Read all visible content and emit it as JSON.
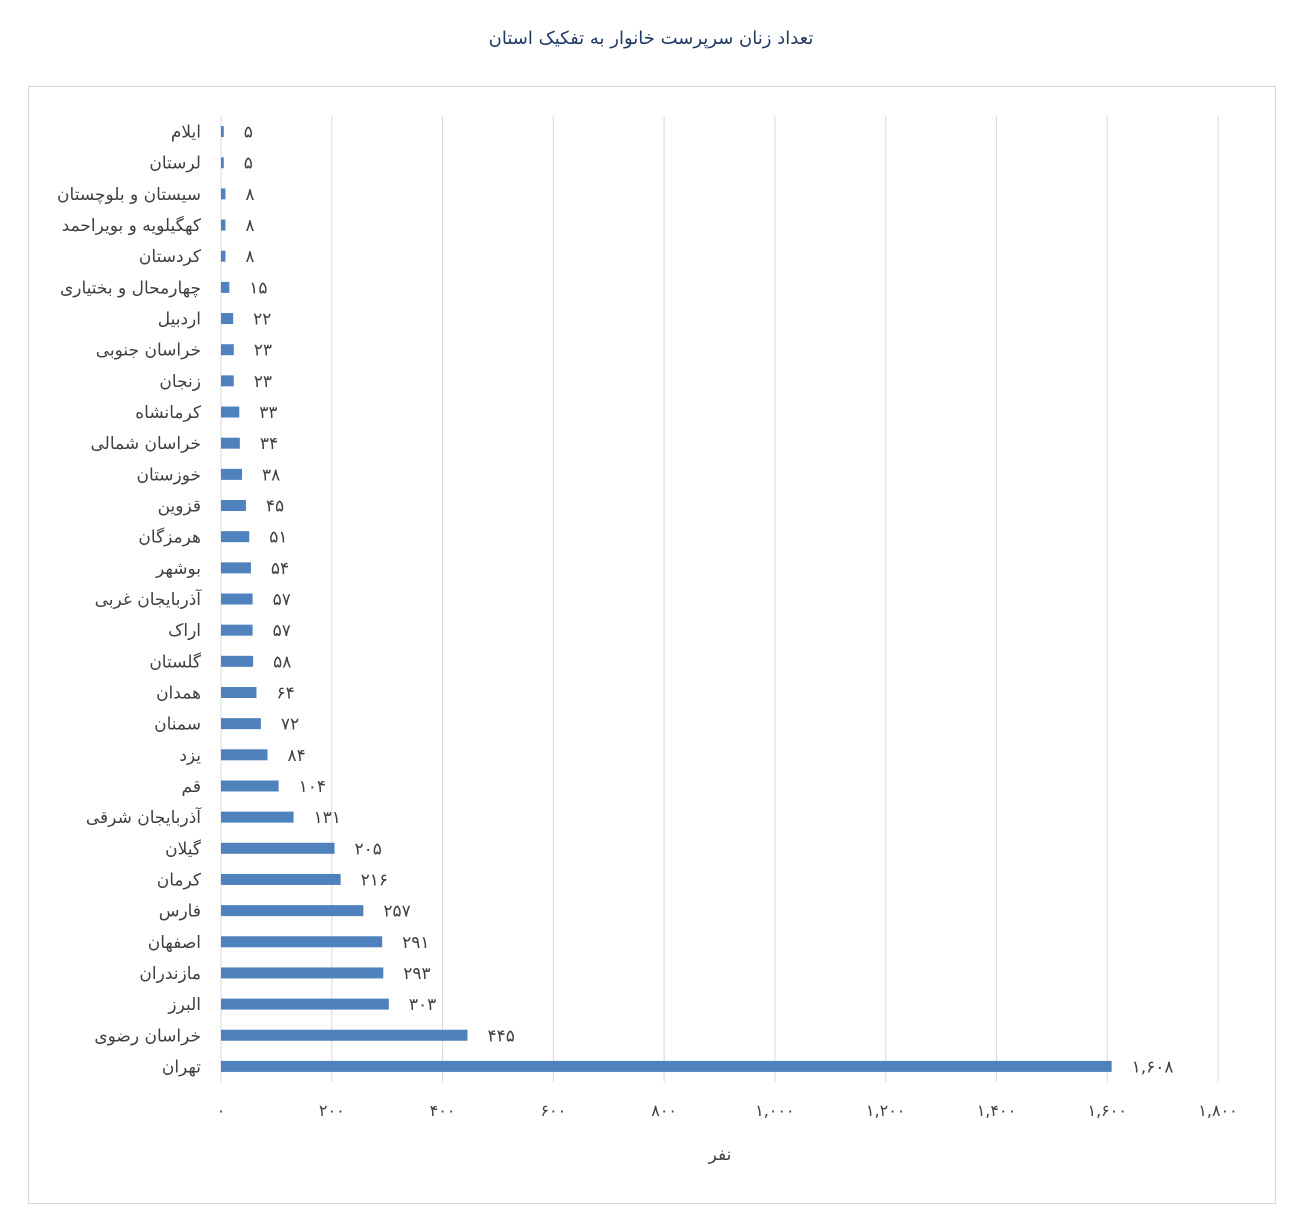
{
  "chart_data": {
    "type": "bar",
    "orientation": "horizontal",
    "title": "تعداد زنان سرپرست خانوار به تفکیک استان",
    "xlabel": "نفر",
    "ylabel": "",
    "xlim": [
      0,
      1800
    ],
    "x_ticks": [
      0,
      200,
      400,
      600,
      800,
      1000,
      1200,
      1400,
      1600,
      1800
    ],
    "x_tick_labels": [
      "۰",
      "۲۰۰",
      "۴۰۰",
      "۶۰۰",
      "۸۰۰",
      "۱,۰۰۰",
      "۱,۲۰۰",
      "۱,۴۰۰",
      "۱,۶۰۰",
      "۱,۸۰۰"
    ],
    "grid": "vertical",
    "bar_color": "#4f81bd",
    "categories": [
      "ایلام",
      "لرستان",
      "سیستان و بلوچستان",
      "کهگیلویه و بویراحمد",
      "کردستان",
      "چهارمحال و بختیاری",
      "اردبیل",
      "خراسان جنوبی",
      "زنجان",
      "کرمانشاه",
      "خراسان شمالی",
      "خوزستان",
      "قزوین",
      "هرمزگان",
      "بوشهر",
      "آذربایجان غربی",
      "اراک",
      "گلستان",
      "همدان",
      "سمنان",
      "یزد",
      "قم",
      "آذربایجان شرقی",
      "گیلان",
      "کرمان",
      "فارس",
      "اصفهان",
      "مازندران",
      "البرز",
      "خراسان رضوی",
      "تهران"
    ],
    "values": [
      5,
      5,
      8,
      8,
      8,
      15,
      22,
      23,
      23,
      33,
      34,
      38,
      45,
      51,
      54,
      57,
      57,
      58,
      64,
      72,
      84,
      104,
      131,
      205,
      216,
      257,
      291,
      293,
      303,
      445,
      1608
    ],
    "value_labels": [
      "۵",
      "۵",
      "۸",
      "۸",
      "۸",
      "۱۵",
      "۲۲",
      "۲۳",
      "۲۳",
      "۳۳",
      "۳۴",
      "۳۸",
      "۴۵",
      "۵۱",
      "۵۴",
      "۵۷",
      "۵۷",
      "۵۸",
      "۶۴",
      "۷۲",
      "۸۴",
      "۱۰۴",
      "۱۳۱",
      "۲۰۵",
      "۲۱۶",
      "۲۵۷",
      "۲۹۱",
      "۲۹۳",
      "۳۰۳",
      "۴۴۵",
      "۱,۶۰۸"
    ]
  }
}
